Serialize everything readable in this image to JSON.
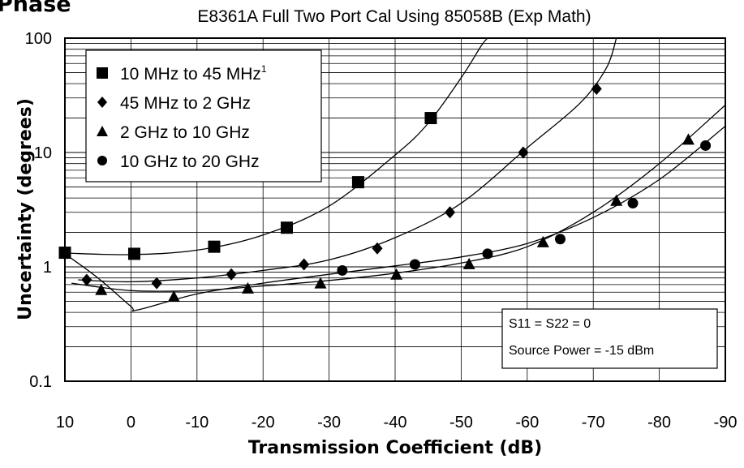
{
  "page_heading": "Phase",
  "chart_data": {
    "type": "scatter",
    "title": "E8361A Full Two Port Cal Using 85058B (Exp Math)",
    "xlabel": "Transmission Coefficient (dB)",
    "ylabel": "Uncertainty (degrees)",
    "xlim": [
      10,
      -90
    ],
    "ylim": [
      0.1,
      100
    ],
    "yscale": "log",
    "x_ticks": [
      "10",
      "0",
      "-10",
      "-20",
      "-30",
      "-40",
      "-50",
      "-60",
      "-70",
      "-80",
      "-90"
    ],
    "y_ticks": [
      "100",
      "10",
      "1",
      "0.1"
    ],
    "grid": true,
    "legend_position": "top-left",
    "legend_footnote": "1",
    "series": [
      {
        "name": "10 MHz to 45 MHz",
        "marker": "square",
        "points": [
          [
            10,
            1.33
          ],
          [
            -0.5,
            1.3
          ],
          [
            -12.6,
            1.5
          ],
          [
            -23.6,
            2.2
          ],
          [
            -34.4,
            5.5
          ],
          [
            -45.4,
            20
          ]
        ],
        "curve": [
          [
            10,
            1.32
          ],
          [
            0,
            1.28
          ],
          [
            -10,
            1.4
          ],
          [
            -20,
            1.9
          ],
          [
            -30,
            3.4
          ],
          [
            -40,
            9.5
          ],
          [
            -45,
            18
          ],
          [
            -50,
            45
          ],
          [
            -53,
            85
          ],
          [
            -54,
            100
          ]
        ]
      },
      {
        "name": "45 MHz to 2 GHz",
        "marker": "diamond",
        "points": [
          [
            6.7,
            0.77
          ],
          [
            -3.9,
            0.72
          ],
          [
            -15.2,
            0.86
          ],
          [
            -26.2,
            1.05
          ],
          [
            -37.3,
            1.45
          ],
          [
            -48.3,
            3.0
          ],
          [
            -59.4,
            10
          ],
          [
            -70.5,
            36
          ]
        ],
        "curve": [
          [
            8,
            0.77
          ],
          [
            0,
            0.74
          ],
          [
            -10,
            0.8
          ],
          [
            -20,
            0.93
          ],
          [
            -30,
            1.15
          ],
          [
            -40,
            1.8
          ],
          [
            -50,
            3.6
          ],
          [
            -60,
            11
          ],
          [
            -68,
            27
          ],
          [
            -72,
            55
          ],
          [
            -73.5,
            100
          ]
        ]
      },
      {
        "name": "2 GHz to 10 GHz",
        "marker": "triangle",
        "points": [
          [
            4.5,
            0.63
          ],
          [
            -6.5,
            0.55
          ],
          [
            -17.7,
            0.65
          ],
          [
            -28.7,
            0.72
          ],
          [
            -40.2,
            0.86
          ],
          [
            -51.2,
            1.06
          ],
          [
            -62.4,
            1.65
          ],
          [
            -73.5,
            3.8
          ],
          [
            -84.4,
            13
          ]
        ],
        "curve": [
          [
            9,
            0.72
          ],
          [
            0,
            0.62
          ],
          [
            -10,
            0.62
          ],
          [
            -20,
            0.68
          ],
          [
            -30,
            0.76
          ],
          [
            -40,
            0.88
          ],
          [
            -50,
            1.08
          ],
          [
            -60,
            1.5
          ],
          [
            -70,
            3.0
          ],
          [
            -80,
            8.0
          ],
          [
            -90,
            26
          ]
        ]
      },
      {
        "name": "10 GHz to 20 GHz",
        "marker": "circle",
        "points": [
          [
            10,
            1.3
          ],
          [
            -32,
            0.93
          ],
          [
            -43,
            1.05
          ],
          [
            -54,
            1.3
          ],
          [
            -65,
            1.75
          ],
          [
            -76,
            3.6
          ],
          [
            -87,
            11.5
          ]
        ],
        "curve": [
          [
            10,
            1.3
          ],
          [
            5,
            0.8
          ],
          [
            0,
            0.45
          ],
          [
            -1,
            0.42
          ],
          [
            -10,
            0.58
          ],
          [
            -20,
            0.72
          ],
          [
            -30,
            0.86
          ],
          [
            -40,
            1.02
          ],
          [
            -50,
            1.22
          ],
          [
            -60,
            1.6
          ],
          [
            -70,
            2.7
          ],
          [
            -80,
            5.8
          ],
          [
            -90,
            17
          ]
        ]
      }
    ],
    "annotation_lines": [
      "S11 = S22 = 0",
      "Source Power = -15 dBm"
    ]
  }
}
